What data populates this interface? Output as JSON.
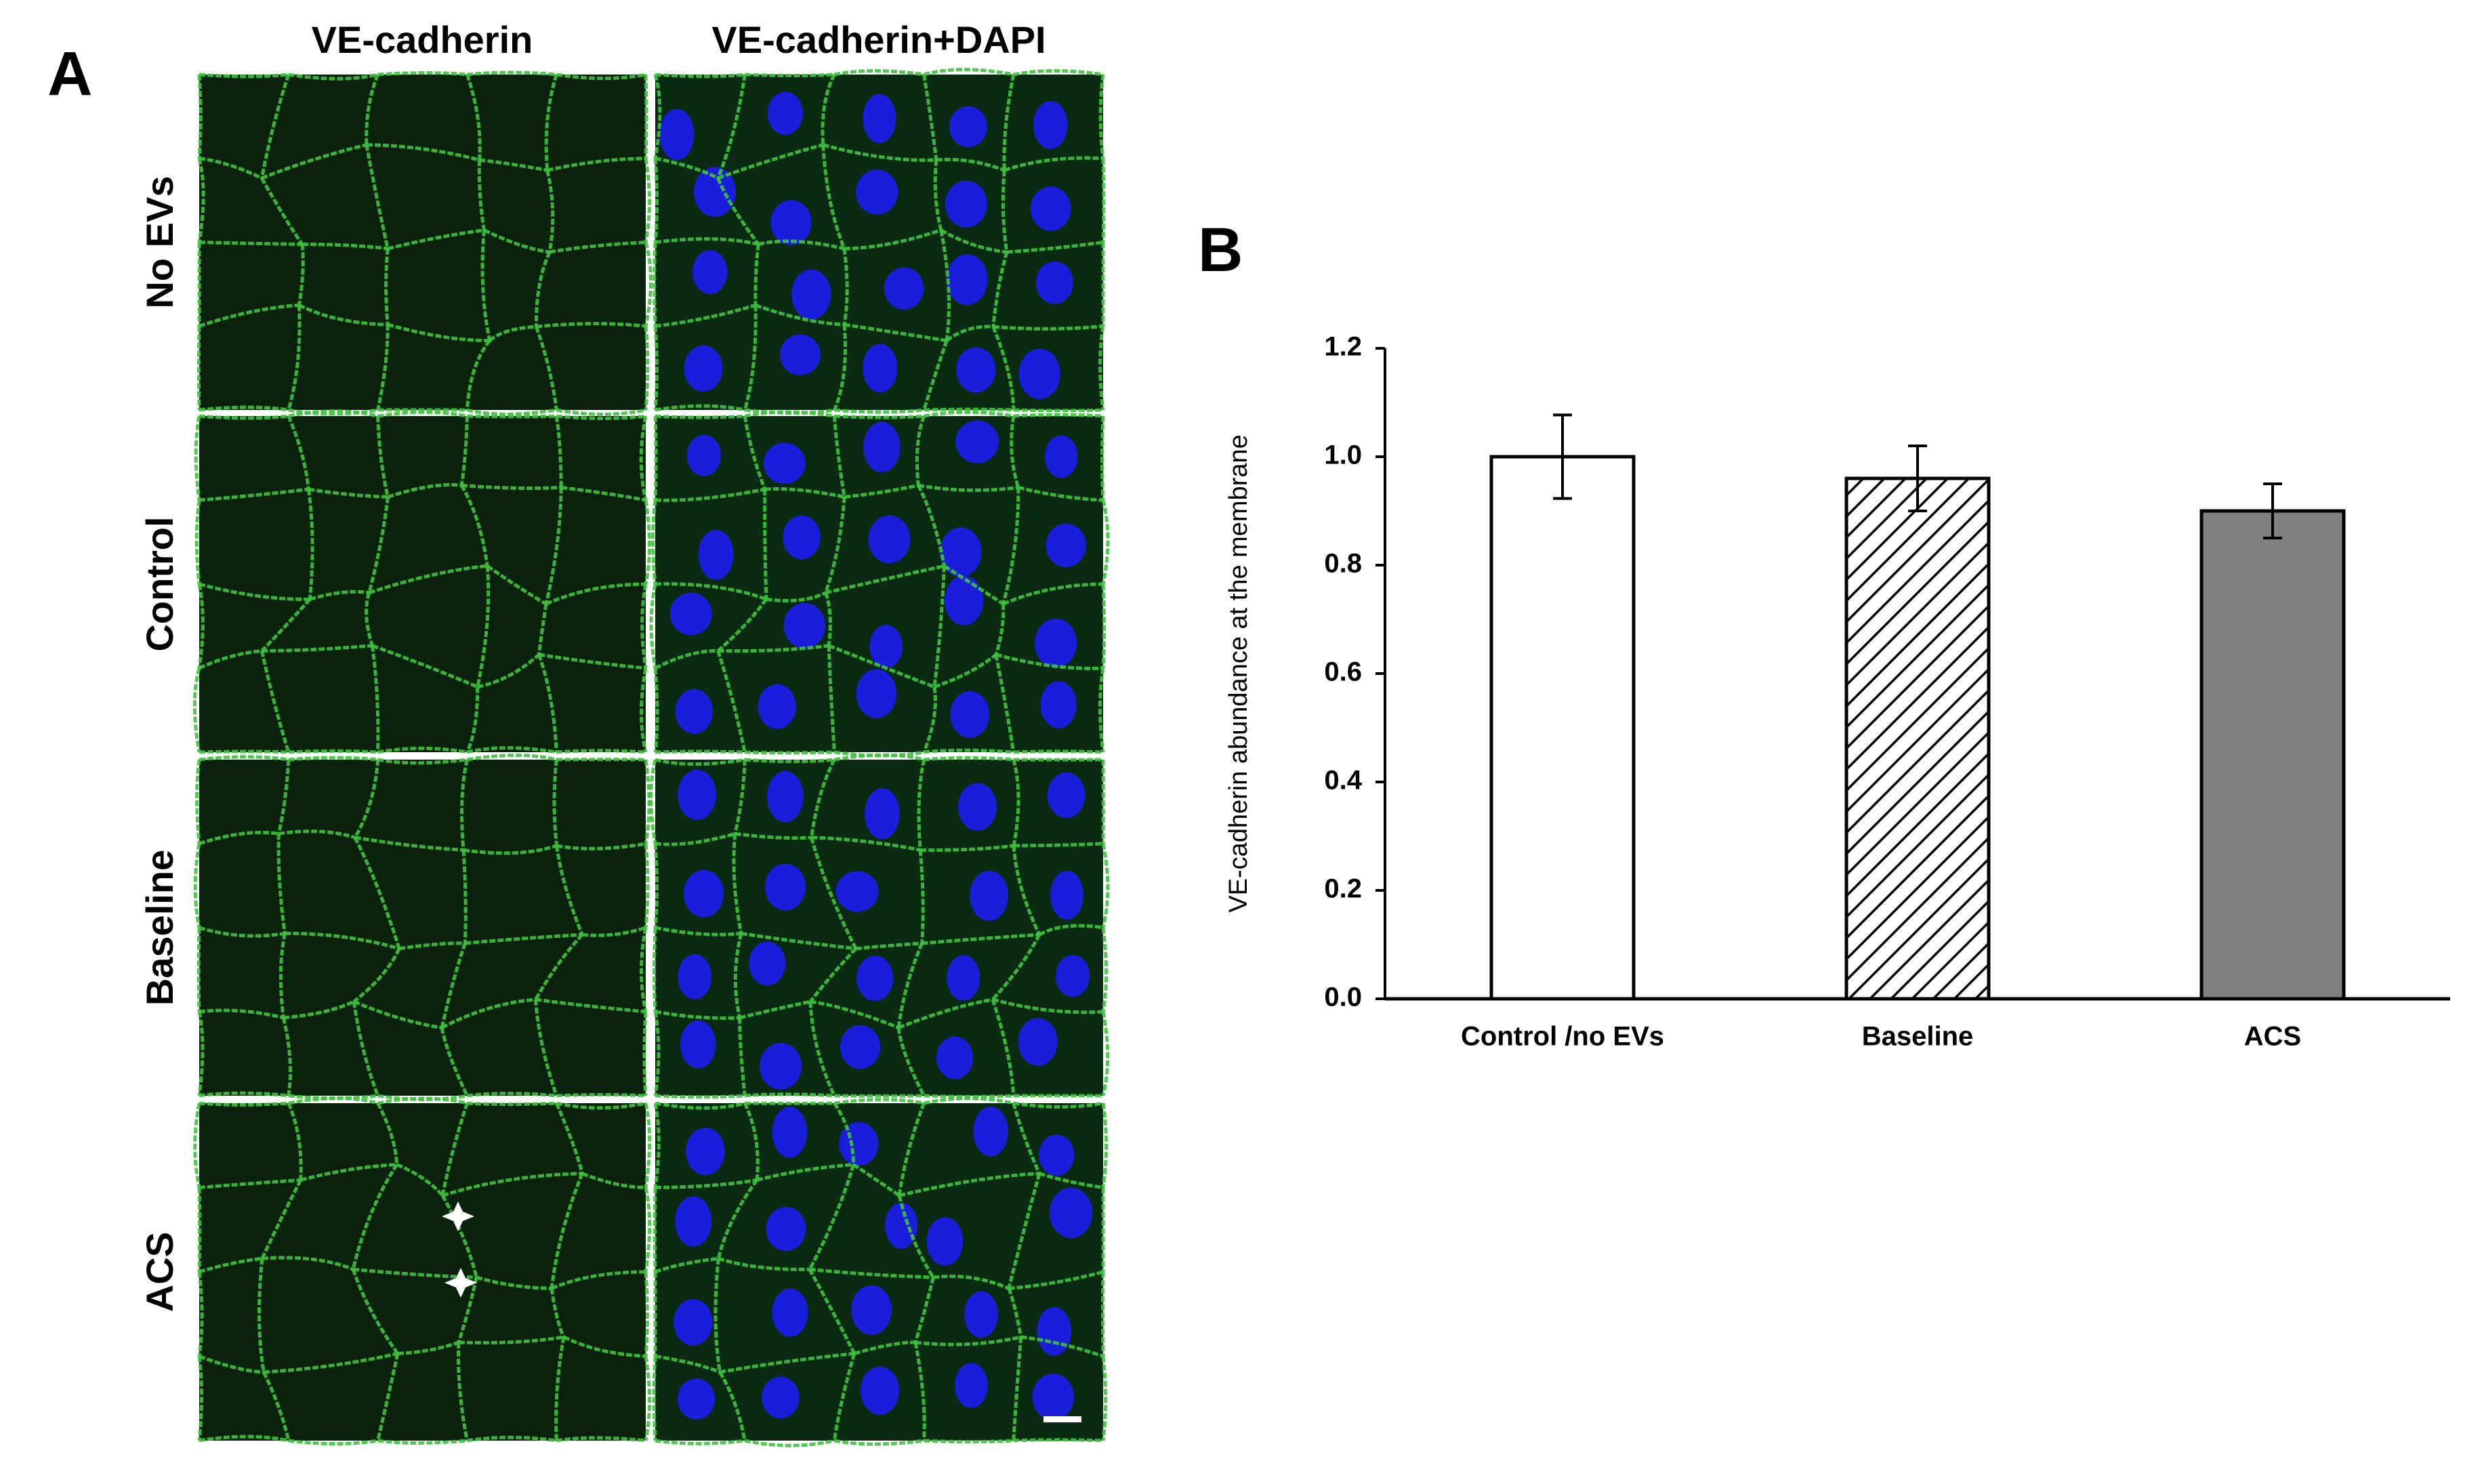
{
  "panel_a": {
    "label": "A",
    "columns": [
      "VE-cadherin",
      "VE-cadherin+DAPI"
    ],
    "rows": [
      "No EVs",
      "Control",
      "Baseline",
      "ACS"
    ]
  },
  "chart_data": {
    "type": "bar",
    "panel_label": "B",
    "y_label": "VE-cadherin abundance at the membrane",
    "categories": [
      "Control /no EVs",
      "Baseline",
      "ACS"
    ],
    "values": [
      1.0,
      0.96,
      0.9
    ],
    "errors": [
      0.077,
      0.06,
      0.05
    ],
    "colors": [
      "#ffffff",
      "#ffffff",
      "#808080"
    ],
    "hatch": [
      false,
      true,
      false
    ],
    "ylim": [
      0,
      1.2
    ],
    "yticks": [
      {
        "value": 0,
        "label": "0.0"
      },
      0.2,
      0.4,
      0.6,
      0.8,
      {
        "value": 1,
        "label": "1.0"
      },
      1.2
    ],
    "grid": false
  }
}
